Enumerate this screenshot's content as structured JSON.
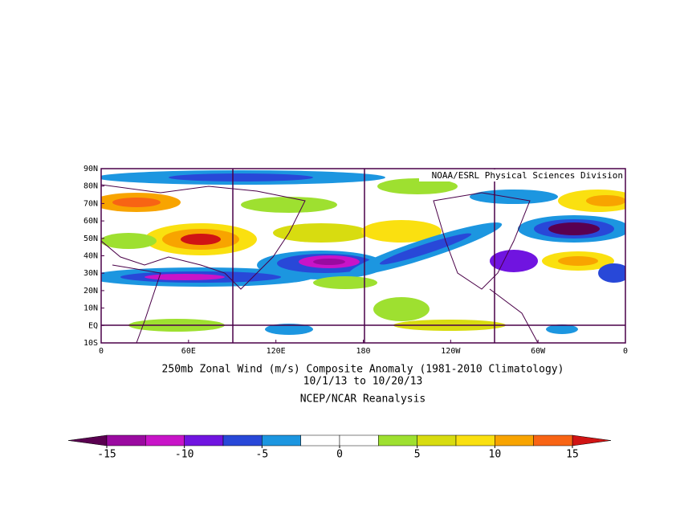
{
  "title_lines": [
    "250mb Zonal Wind (m/s) Composite Anomaly (1981-2010 Climatology)",
    "10/1/13  to 10/20/13",
    "NCEP/NCAR Reanalysis"
  ],
  "credit": "NOAA/ESRL Physical Sciences Division",
  "lat_labels": [
    "90N",
    "80N",
    "70N",
    "60N",
    "50N",
    "40N",
    "30N",
    "20N",
    "10N",
    "EQ",
    "10S"
  ],
  "lon_labels": [
    "0",
    "60E",
    "120E",
    "180",
    "120W",
    "60W",
    "0"
  ],
  "colorbar": {
    "levels": [
      -15,
      -10,
      -5,
      0,
      5,
      10,
      15
    ],
    "colors": [
      "#9a0aa0",
      "#c814c8",
      "#7014e0",
      "#2848d8",
      "#1c96e0",
      "#ffffff",
      "#ffffff",
      "#9ee030",
      "#d8dc10",
      "#fae010",
      "#f8a400",
      "#f86414"
    ],
    "under_color": "#5a0050",
    "over_color": "#d01414"
  }
}
